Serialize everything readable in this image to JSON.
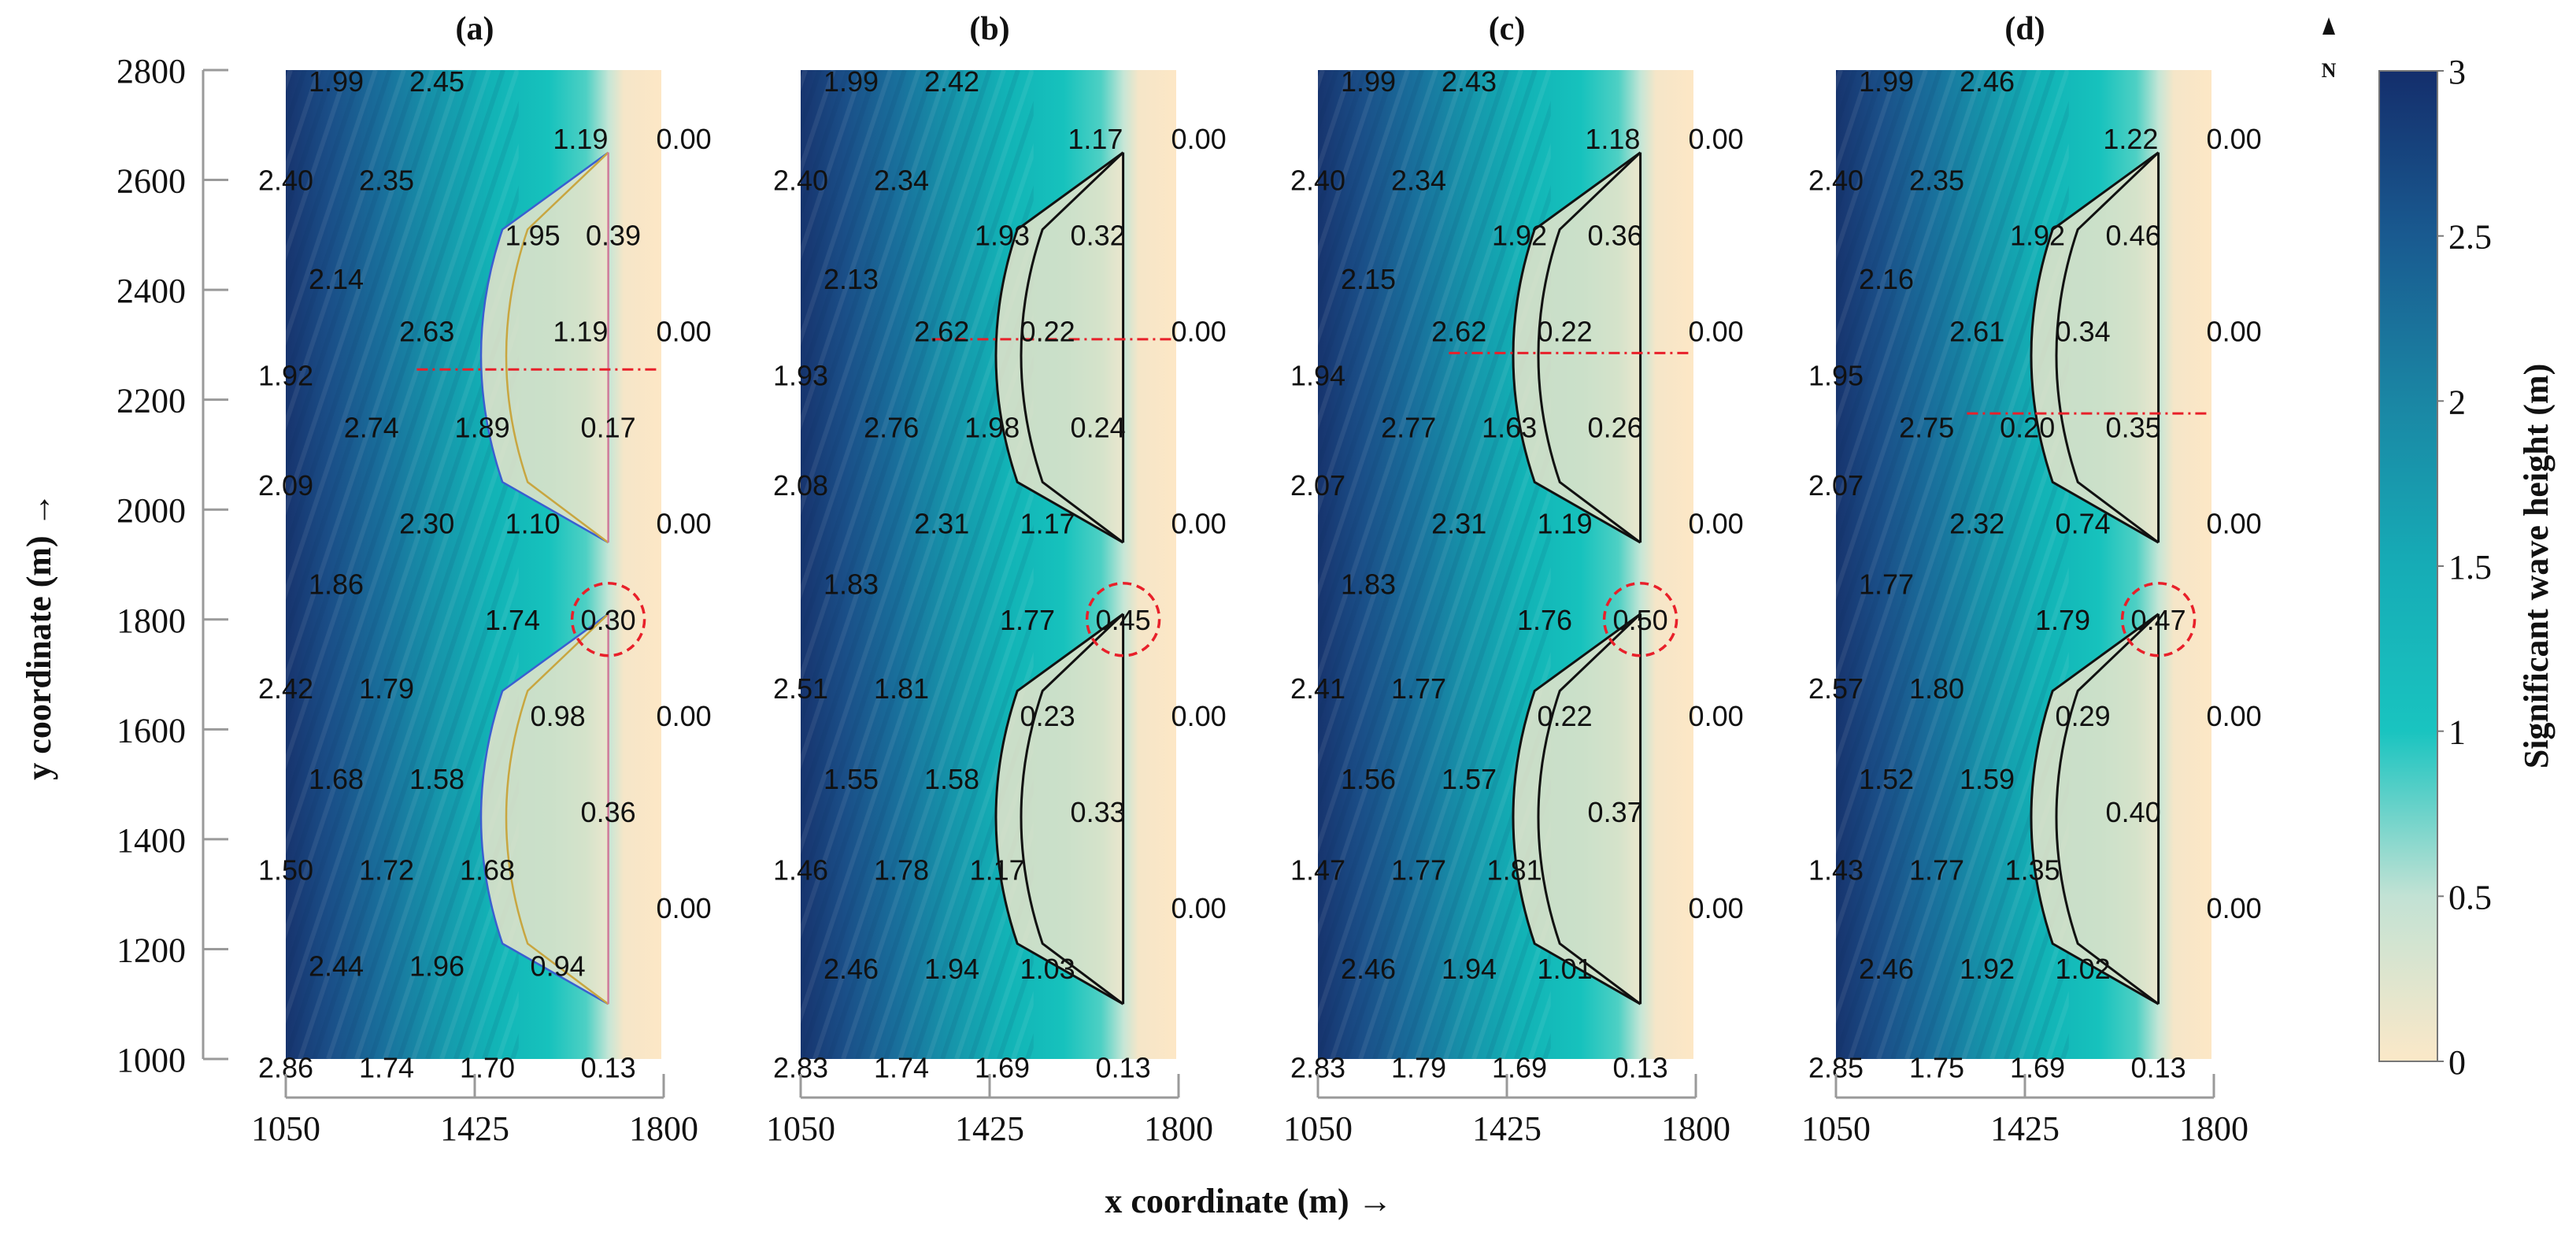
{
  "figure": {
    "panel_titles": [
      "(a)",
      "(b)",
      "(c)",
      "(d)"
    ],
    "x_axis_label": "x coordinate (m) →",
    "y_axis_label": "y coordinate (m) →",
    "north_label": "N",
    "colorbar": {
      "title": "Significant wave height (m)",
      "ticks": [
        "3",
        "2.5",
        "2",
        "1.5",
        "1",
        "0.5",
        "0"
      ],
      "min": 0,
      "max": 3,
      "colors": {
        "0": "#fbe8c8",
        "0.5": "#c2e2d4",
        "1": "#19c4c0",
        "1.5": "#16acb6",
        "2": "#1a86a4",
        "2.5": "#195a90",
        "3": "#142e6c"
      }
    }
  },
  "chart_data": {
    "type": "heatmap",
    "x_ticks": [
      1050,
      1425,
      1800
    ],
    "y_ticks": [
      1000,
      1200,
      1400,
      1600,
      1800,
      2000,
      2200,
      2400,
      2600,
      2800
    ],
    "xlim": [
      1050,
      1800
    ],
    "ylim": [
      1000,
      2800
    ],
    "accent_colors": {
      "transect_line": "#e8202a",
      "highlight_circle": "#e8202a"
    },
    "panels": [
      {
        "title": "(a)",
        "highlight": {
          "x": 1690,
          "y": 1800,
          "value": "0.30"
        },
        "transect_y": 2255,
        "labels": [
          {
            "x": 1150,
            "y": 2780,
            "v": "1.99"
          },
          {
            "x": 1350,
            "y": 2780,
            "v": "2.45"
          },
          {
            "x": 1635,
            "y": 2675,
            "v": "1.19"
          },
          {
            "x": 1840,
            "y": 2675,
            "v": "0.00"
          },
          {
            "x": 1050,
            "y": 2600,
            "v": "2.40"
          },
          {
            "x": 1250,
            "y": 2600,
            "v": "2.35"
          },
          {
            "x": 1540,
            "y": 2500,
            "v": "1.95"
          },
          {
            "x": 1700,
            "y": 2500,
            "v": "0.39"
          },
          {
            "x": 1150,
            "y": 2420,
            "v": "2.14"
          },
          {
            "x": 1330,
            "y": 2325,
            "v": "2.63"
          },
          {
            "x": 1635,
            "y": 2325,
            "v": "1.19"
          },
          {
            "x": 1840,
            "y": 2325,
            "v": "0.00"
          },
          {
            "x": 1050,
            "y": 2245,
            "v": "1.92"
          },
          {
            "x": 1220,
            "y": 2150,
            "v": "2.74"
          },
          {
            "x": 1440,
            "y": 2150,
            "v": "1.89"
          },
          {
            "x": 1690,
            "y": 2150,
            "v": "0.17"
          },
          {
            "x": 1050,
            "y": 2045,
            "v": "2.09"
          },
          {
            "x": 1330,
            "y": 1975,
            "v": "2.30"
          },
          {
            "x": 1540,
            "y": 1975,
            "v": "1.10"
          },
          {
            "x": 1840,
            "y": 1975,
            "v": "0.00"
          },
          {
            "x": 1150,
            "y": 1865,
            "v": "1.86"
          },
          {
            "x": 1500,
            "y": 1800,
            "v": "1.74"
          },
          {
            "x": 1690,
            "y": 1800,
            "v": "0.30"
          },
          {
            "x": 1050,
            "y": 1675,
            "v": "2.42"
          },
          {
            "x": 1250,
            "y": 1675,
            "v": "1.79"
          },
          {
            "x": 1590,
            "y": 1625,
            "v": "0.98"
          },
          {
            "x": 1840,
            "y": 1625,
            "v": "0.00"
          },
          {
            "x": 1150,
            "y": 1510,
            "v": "1.68"
          },
          {
            "x": 1350,
            "y": 1510,
            "v": "1.58"
          },
          {
            "x": 1690,
            "y": 1450,
            "v": "0.36"
          },
          {
            "x": 1050,
            "y": 1345,
            "v": "1.50"
          },
          {
            "x": 1250,
            "y": 1345,
            "v": "1.72"
          },
          {
            "x": 1450,
            "y": 1345,
            "v": "1.68"
          },
          {
            "x": 1840,
            "y": 1275,
            "v": "0.00"
          },
          {
            "x": 1150,
            "y": 1170,
            "v": "2.44"
          },
          {
            "x": 1350,
            "y": 1170,
            "v": "1.96"
          },
          {
            "x": 1590,
            "y": 1170,
            "v": "0.94"
          },
          {
            "x": 1050,
            "y": 985,
            "v": "2.86"
          },
          {
            "x": 1250,
            "y": 985,
            "v": "1.74"
          },
          {
            "x": 1450,
            "y": 985,
            "v": "1.70"
          },
          {
            "x": 1690,
            "y": 985,
            "v": "0.13"
          }
        ]
      },
      {
        "title": "(b)",
        "highlight": {
          "x": 1690,
          "y": 1800,
          "value": "0.45"
        },
        "transect_y": 2310,
        "labels": [
          {
            "x": 1150,
            "y": 2780,
            "v": "1.99"
          },
          {
            "x": 1350,
            "y": 2780,
            "v": "2.42"
          },
          {
            "x": 1635,
            "y": 2675,
            "v": "1.17"
          },
          {
            "x": 1840,
            "y": 2675,
            "v": "0.00"
          },
          {
            "x": 1050,
            "y": 2600,
            "v": "2.40"
          },
          {
            "x": 1250,
            "y": 2600,
            "v": "2.34"
          },
          {
            "x": 1450,
            "y": 2500,
            "v": "1.93"
          },
          {
            "x": 1640,
            "y": 2500,
            "v": "0.32"
          },
          {
            "x": 1150,
            "y": 2420,
            "v": "2.13"
          },
          {
            "x": 1330,
            "y": 2325,
            "v": "2.62"
          },
          {
            "x": 1540,
            "y": 2325,
            "v": "0.22"
          },
          {
            "x": 1840,
            "y": 2325,
            "v": "0.00"
          },
          {
            "x": 1050,
            "y": 2245,
            "v": "1.93"
          },
          {
            "x": 1230,
            "y": 2150,
            "v": "2.76"
          },
          {
            "x": 1430,
            "y": 2150,
            "v": "1.98"
          },
          {
            "x": 1640,
            "y": 2150,
            "v": "0.24"
          },
          {
            "x": 1050,
            "y": 2045,
            "v": "2.08"
          },
          {
            "x": 1330,
            "y": 1975,
            "v": "2.31"
          },
          {
            "x": 1540,
            "y": 1975,
            "v": "1.17"
          },
          {
            "x": 1840,
            "y": 1975,
            "v": "0.00"
          },
          {
            "x": 1150,
            "y": 1865,
            "v": "1.83"
          },
          {
            "x": 1500,
            "y": 1800,
            "v": "1.77"
          },
          {
            "x": 1690,
            "y": 1800,
            "v": "0.45"
          },
          {
            "x": 1050,
            "y": 1675,
            "v": "2.51"
          },
          {
            "x": 1250,
            "y": 1675,
            "v": "1.81"
          },
          {
            "x": 1540,
            "y": 1625,
            "v": "0.23"
          },
          {
            "x": 1840,
            "y": 1625,
            "v": "0.00"
          },
          {
            "x": 1150,
            "y": 1510,
            "v": "1.55"
          },
          {
            "x": 1350,
            "y": 1510,
            "v": "1.58"
          },
          {
            "x": 1640,
            "y": 1450,
            "v": "0.33"
          },
          {
            "x": 1050,
            "y": 1345,
            "v": "1.46"
          },
          {
            "x": 1250,
            "y": 1345,
            "v": "1.78"
          },
          {
            "x": 1440,
            "y": 1345,
            "v": "1.17"
          },
          {
            "x": 1840,
            "y": 1275,
            "v": "0.00"
          },
          {
            "x": 1150,
            "y": 1165,
            "v": "2.46"
          },
          {
            "x": 1350,
            "y": 1165,
            "v": "1.94"
          },
          {
            "x": 1540,
            "y": 1165,
            "v": "1.03"
          },
          {
            "x": 1050,
            "y": 985,
            "v": "2.83"
          },
          {
            "x": 1250,
            "y": 985,
            "v": "1.74"
          },
          {
            "x": 1450,
            "y": 985,
            "v": "1.69"
          },
          {
            "x": 1690,
            "y": 985,
            "v": "0.13"
          }
        ]
      },
      {
        "title": "(c)",
        "highlight": {
          "x": 1690,
          "y": 1800,
          "value": "0.50"
        },
        "transect_y": 2285,
        "labels": [
          {
            "x": 1150,
            "y": 2780,
            "v": "1.99"
          },
          {
            "x": 1350,
            "y": 2780,
            "v": "2.43"
          },
          {
            "x": 1635,
            "y": 2675,
            "v": "1.18"
          },
          {
            "x": 1840,
            "y": 2675,
            "v": "0.00"
          },
          {
            "x": 1050,
            "y": 2600,
            "v": "2.40"
          },
          {
            "x": 1250,
            "y": 2600,
            "v": "2.34"
          },
          {
            "x": 1450,
            "y": 2500,
            "v": "1.92"
          },
          {
            "x": 1640,
            "y": 2500,
            "v": "0.36"
          },
          {
            "x": 1150,
            "y": 2420,
            "v": "2.15"
          },
          {
            "x": 1330,
            "y": 2325,
            "v": "2.62"
          },
          {
            "x": 1540,
            "y": 2325,
            "v": "0.22"
          },
          {
            "x": 1840,
            "y": 2325,
            "v": "0.00"
          },
          {
            "x": 1050,
            "y": 2245,
            "v": "1.94"
          },
          {
            "x": 1230,
            "y": 2150,
            "v": "2.77"
          },
          {
            "x": 1430,
            "y": 2150,
            "v": "1.63"
          },
          {
            "x": 1640,
            "y": 2150,
            "v": "0.26"
          },
          {
            "x": 1050,
            "y": 2045,
            "v": "2.07"
          },
          {
            "x": 1330,
            "y": 1975,
            "v": "2.31"
          },
          {
            "x": 1540,
            "y": 1975,
            "v": "1.19"
          },
          {
            "x": 1840,
            "y": 1975,
            "v": "0.00"
          },
          {
            "x": 1150,
            "y": 1865,
            "v": "1.83"
          },
          {
            "x": 1500,
            "y": 1800,
            "v": "1.76"
          },
          {
            "x": 1690,
            "y": 1800,
            "v": "0.50"
          },
          {
            "x": 1050,
            "y": 1675,
            "v": "2.41"
          },
          {
            "x": 1250,
            "y": 1675,
            "v": "1.77"
          },
          {
            "x": 1540,
            "y": 1625,
            "v": "0.22"
          },
          {
            "x": 1840,
            "y": 1625,
            "v": "0.00"
          },
          {
            "x": 1150,
            "y": 1510,
            "v": "1.56"
          },
          {
            "x": 1350,
            "y": 1510,
            "v": "1.57"
          },
          {
            "x": 1640,
            "y": 1450,
            "v": "0.37"
          },
          {
            "x": 1050,
            "y": 1345,
            "v": "1.47"
          },
          {
            "x": 1250,
            "y": 1345,
            "v": "1.77"
          },
          {
            "x": 1440,
            "y": 1345,
            "v": "1.81"
          },
          {
            "x": 1840,
            "y": 1275,
            "v": "0.00"
          },
          {
            "x": 1150,
            "y": 1165,
            "v": "2.46"
          },
          {
            "x": 1350,
            "y": 1165,
            "v": "1.94"
          },
          {
            "x": 1540,
            "y": 1165,
            "v": "1.01"
          },
          {
            "x": 1050,
            "y": 985,
            "v": "2.83"
          },
          {
            "x": 1250,
            "y": 985,
            "v": "1.79"
          },
          {
            "x": 1450,
            "y": 985,
            "v": "1.69"
          },
          {
            "x": 1690,
            "y": 985,
            "v": "0.13"
          }
        ]
      },
      {
        "title": "(d)",
        "highlight": {
          "x": 1690,
          "y": 1800,
          "value": "0.47"
        },
        "transect_y": 2175,
        "labels": [
          {
            "x": 1150,
            "y": 2780,
            "v": "1.99"
          },
          {
            "x": 1350,
            "y": 2780,
            "v": "2.46"
          },
          {
            "x": 1635,
            "y": 2675,
            "v": "1.22"
          },
          {
            "x": 1840,
            "y": 2675,
            "v": "0.00"
          },
          {
            "x": 1050,
            "y": 2600,
            "v": "2.40"
          },
          {
            "x": 1250,
            "y": 2600,
            "v": "2.35"
          },
          {
            "x": 1450,
            "y": 2500,
            "v": "1.92"
          },
          {
            "x": 1640,
            "y": 2500,
            "v": "0.46"
          },
          {
            "x": 1150,
            "y": 2420,
            "v": "2.16"
          },
          {
            "x": 1330,
            "y": 2325,
            "v": "2.61"
          },
          {
            "x": 1540,
            "y": 2325,
            "v": "0.34"
          },
          {
            "x": 1840,
            "y": 2325,
            "v": "0.00"
          },
          {
            "x": 1050,
            "y": 2245,
            "v": "1.95"
          },
          {
            "x": 1230,
            "y": 2150,
            "v": "2.75"
          },
          {
            "x": 1430,
            "y": 2150,
            "v": "0.20"
          },
          {
            "x": 1640,
            "y": 2150,
            "v": "0.35"
          },
          {
            "x": 1050,
            "y": 2045,
            "v": "2.07"
          },
          {
            "x": 1330,
            "y": 1975,
            "v": "2.32"
          },
          {
            "x": 1540,
            "y": 1975,
            "v": "0.74"
          },
          {
            "x": 1840,
            "y": 1975,
            "v": "0.00"
          },
          {
            "x": 1150,
            "y": 1865,
            "v": "1.77"
          },
          {
            "x": 1500,
            "y": 1800,
            "v": "1.79"
          },
          {
            "x": 1690,
            "y": 1800,
            "v": "0.47"
          },
          {
            "x": 1050,
            "y": 1675,
            "v": "2.57"
          },
          {
            "x": 1250,
            "y": 1675,
            "v": "1.80"
          },
          {
            "x": 1540,
            "y": 1625,
            "v": "0.29"
          },
          {
            "x": 1840,
            "y": 1625,
            "v": "0.00"
          },
          {
            "x": 1150,
            "y": 1510,
            "v": "1.52"
          },
          {
            "x": 1350,
            "y": 1510,
            "v": "1.59"
          },
          {
            "x": 1640,
            "y": 1450,
            "v": "0.40"
          },
          {
            "x": 1050,
            "y": 1345,
            "v": "1.43"
          },
          {
            "x": 1250,
            "y": 1345,
            "v": "1.77"
          },
          {
            "x": 1440,
            "y": 1345,
            "v": "1.35"
          },
          {
            "x": 1840,
            "y": 1275,
            "v": "0.00"
          },
          {
            "x": 1150,
            "y": 1165,
            "v": "2.46"
          },
          {
            "x": 1350,
            "y": 1165,
            "v": "1.92"
          },
          {
            "x": 1540,
            "y": 1165,
            "v": "1.02"
          },
          {
            "x": 1050,
            "y": 985,
            "v": "2.85"
          },
          {
            "x": 1250,
            "y": 985,
            "v": "1.75"
          },
          {
            "x": 1450,
            "y": 985,
            "v": "1.69"
          },
          {
            "x": 1690,
            "y": 985,
            "v": "0.13"
          }
        ]
      }
    ]
  }
}
